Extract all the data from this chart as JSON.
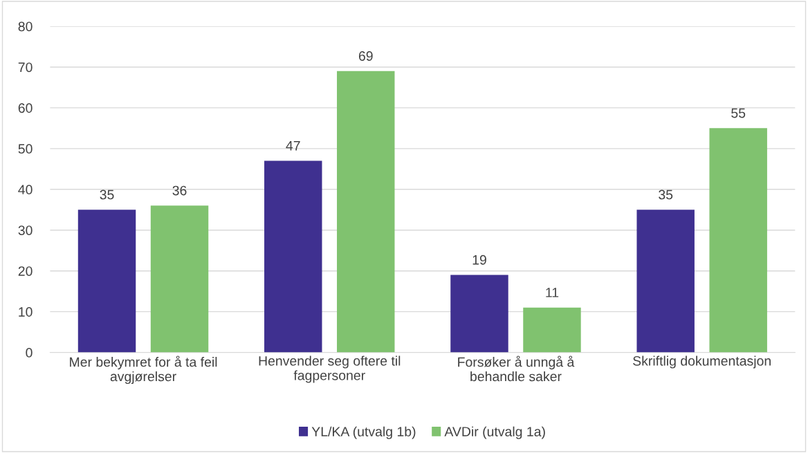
{
  "chart_data": {
    "type": "bar",
    "categories": [
      "Mer bekymret for å ta feil\navgjørelser",
      "Henvender seg oftere til\nfagpersoner",
      "Forsøker å unngå å\nbehandle saker",
      "Skriftlig dokumentasjon"
    ],
    "series": [
      {
        "name": "YL/KA (utvalg 1b)",
        "color": "#3f3090",
        "values": [
          35,
          47,
          19,
          35
        ]
      },
      {
        "name": "AVDir (utvalg 1a)",
        "color": "#80c26f",
        "values": [
          36,
          69,
          11,
          55
        ]
      }
    ],
    "ylim": [
      0,
      80
    ],
    "yticks": [
      0,
      10,
      20,
      30,
      40,
      50,
      60,
      70,
      80
    ],
    "grid": "y",
    "legend": "bottom",
    "data_labels": true
  }
}
